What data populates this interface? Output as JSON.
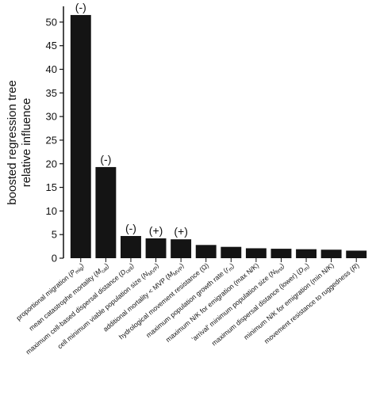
{
  "chart_data": {
    "type": "bar",
    "ylabel_lines": [
      "boosted regression tree",
      "relative influence"
    ],
    "ylim": [
      0,
      53
    ],
    "yticks": [
      0,
      5,
      10,
      15,
      20,
      25,
      30,
      35,
      40,
      45,
      50
    ],
    "bar_color": "#141414",
    "categories": [
      {
        "text": "proportional migration (",
        "sym": "P",
        "sub": "mig",
        "tail": ")"
      },
      {
        "text": "mean catastrophe mortality (",
        "sym": "M",
        "sub": "cat",
        "tail": ")"
      },
      {
        "text": "maximum cell-based dispersal distance (",
        "sym": "D",
        "sub": "cell",
        "tail": ")"
      },
      {
        "text": "cell minimum viable population size (",
        "sym": "N",
        "sub": "MVP",
        "tail": ")"
      },
      {
        "text": "additional mortality < MVP (",
        "sym": "M",
        "sub": "MVP",
        "tail": ")"
      },
      {
        "text": "hydrological movement resistance (Ω)",
        "sym": "",
        "sub": "",
        "tail": ""
      },
      {
        "text": "maximum population growth rate (",
        "sym": "r",
        "sub": "m",
        "tail": ")"
      },
      {
        "text": "maximum N/K for emigration (max N/K)",
        "sym": "",
        "sub": "",
        "tail": ""
      },
      {
        "text": "'arrival' minimum population size (",
        "sym": "N",
        "sub": "first",
        "tail": ")"
      },
      {
        "text": "maximum dispersal distance (lower) (",
        "sym": "D",
        "sub": "m",
        "tail": ")"
      },
      {
        "text": "minimum N/K for emigration (min N/K)",
        "sym": "",
        "sub": "",
        "tail": ""
      },
      {
        "text": "movement resistance to ruggedness (",
        "sym": "R",
        "sub": "",
        "tail": ")"
      }
    ],
    "values": [
      51.5,
      19.3,
      4.7,
      4.2,
      4.0,
      2.8,
      2.4,
      2.1,
      2.0,
      1.9,
      1.8,
      1.6
    ],
    "annotations": [
      "(-)",
      "(-)",
      "(-)",
      "(+)",
      "(+)",
      "",
      "",
      "",
      "",
      "",
      "",
      ""
    ]
  }
}
